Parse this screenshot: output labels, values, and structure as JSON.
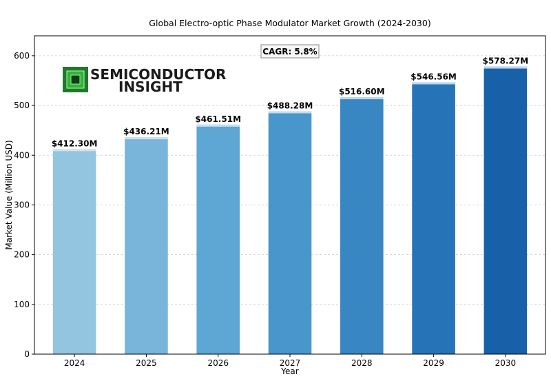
{
  "chart_data": {
    "type": "bar",
    "title": "Global Electro-optic Phase Modulator Market Growth (2024-2030)",
    "xlabel": "Year",
    "ylabel": "Market Value (Million USD)",
    "categories": [
      "2024",
      "2025",
      "2026",
      "2027",
      "2028",
      "2029",
      "2030"
    ],
    "values": [
      412.3,
      436.21,
      461.51,
      488.28,
      516.6,
      546.56,
      578.27
    ],
    "value_labels": [
      "$412.30M",
      "$436.21M",
      "$461.51M",
      "$488.28M",
      "$516.60M",
      "$546.56M",
      "$578.27M"
    ],
    "bar_colors": [
      "#93c4e0",
      "#79b5da",
      "#5ea6d3",
      "#4896cb",
      "#3886c2",
      "#2673b7",
      "#1861a8"
    ],
    "ylim": [
      0,
      640
    ],
    "yticks": [
      0,
      100,
      200,
      300,
      400,
      500,
      600
    ],
    "grid": true,
    "annotation": "CAGR: 5.8%"
  },
  "logo": {
    "line1": "SEMICONDUCTOR",
    "line2": "INSIGHT"
  }
}
